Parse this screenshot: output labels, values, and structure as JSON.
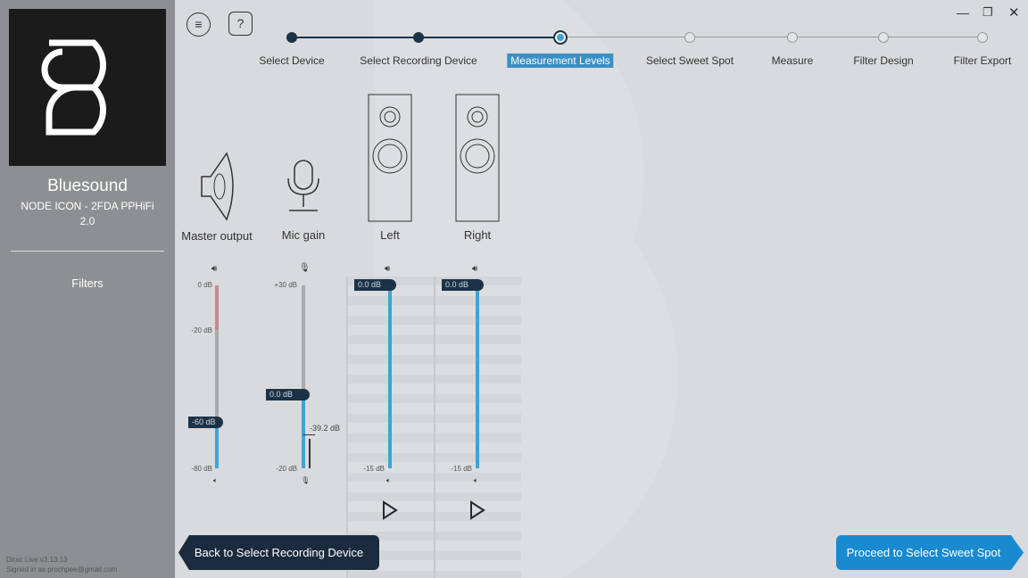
{
  "sidebar": {
    "brand": "Bluesound",
    "device": "NODE ICON - 2FDA PPHiFi",
    "channels": "2.0",
    "filters": "Filters",
    "version": "Dirac Live v3.13.13",
    "signed_in": "Signed in as prochpee@gmail.com"
  },
  "steps": [
    {
      "label": "Select Device",
      "state": "done"
    },
    {
      "label": "Select Recording Device",
      "state": "done"
    },
    {
      "label": "Measurement Levels",
      "state": "current"
    },
    {
      "label": "Select Sweet Spot",
      "state": "todo"
    },
    {
      "label": "Measure",
      "state": "todo"
    },
    {
      "label": "Filter Design",
      "state": "todo"
    },
    {
      "label": "Filter Export",
      "state": "todo"
    }
  ],
  "channels": {
    "master": {
      "label": "Master output",
      "top": "0 dB",
      "mid": "-20 dB",
      "bottom": "-80 dB",
      "value": "-60 dB"
    },
    "mic": {
      "label": "Mic gain",
      "top": "+30 dB",
      "bottom": "-20 dB",
      "value": "0.0 dB",
      "level": "-39.2 dB"
    },
    "left": {
      "label": "Left",
      "bottom": "-15 dB",
      "value": "0.0 dB"
    },
    "right": {
      "label": "Right",
      "bottom": "-15 dB",
      "value": "0.0 dB"
    }
  },
  "buttons": {
    "back": "Back to Select Recording Device",
    "proceed": "Proceed to Select Sweet Spot",
    "help": "?"
  },
  "colors": {
    "accent": "#1a8ad0",
    "dark": "#1c3247",
    "track_blue": "#3fa3d6",
    "track_red": "#c98590"
  }
}
